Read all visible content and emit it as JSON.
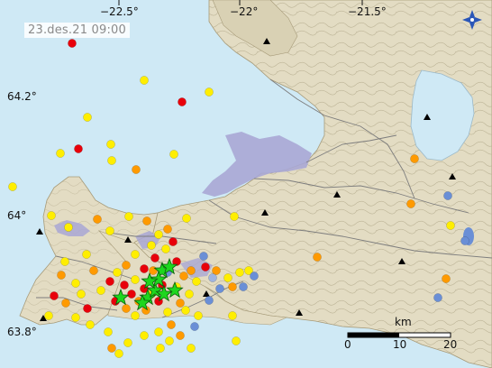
{
  "map": {
    "timestamp": "23.des.21  09:00",
    "lon_labels": [
      "−22.5°",
      "−22°",
      "−21.5°"
    ],
    "lat_labels": [
      "64.2°",
      "64°",
      "63.8°"
    ],
    "scale_unit": "km",
    "scale_ticks": [
      "0",
      "10",
      "20"
    ],
    "icon": "compass-icon",
    "colors": {
      "sea": "#cfe9f5",
      "land": "#e3dcc3",
      "contour": "#b2a98b",
      "lava": "#a9a7d5",
      "road": "#7d7d7d",
      "quake_red": "#e8000a",
      "quake_orange": "#ff9a00",
      "quake_yellow": "#ffee00",
      "quake_blue": "#6a8fd6",
      "quake_lightblue": "#9fb4e0",
      "star": "#1ed61e",
      "station": "#000000"
    }
  }
}
